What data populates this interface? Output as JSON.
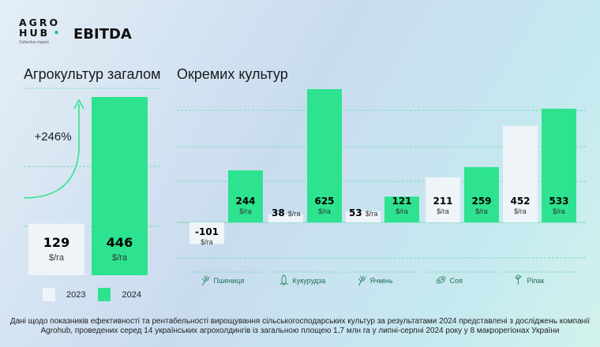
{
  "brand": {
    "logo_line1": "AGRO",
    "logo_line2": "HUB",
    "tagline": "Collective impact",
    "accent": "#2de38f"
  },
  "page": {
    "title": "EBITDA"
  },
  "legend": [
    {
      "label": "2023",
      "color": "#eef4f8"
    },
    {
      "label": "2024",
      "color": "#2de38f"
    }
  ],
  "footnote": "Дані щодо показників ефективності та рентабельності вирощування сільськогосподарських культур за результатами 2024 представлені з досліджень компанії Agrohub, проведених серед 14 українських агрохолдингів із загальною площею 1,7 млн га у липні-серпні 2024 року у 8 макрорегіонах України",
  "chart_data": [
    {
      "type": "bar",
      "title": "Агрокультур загалом",
      "categories": [
        "Агрокультур загалом"
      ],
      "series": [
        {
          "name": "2023",
          "values": [
            129
          ]
        },
        {
          "name": "2024",
          "values": [
            446
          ]
        }
      ],
      "unit": "$/га",
      "annotation": "+246%",
      "legend_position": "bottom-left",
      "grid": true
    },
    {
      "type": "bar",
      "title": "Окремих культур",
      "categories": [
        "Пшениця",
        "Кукурудза",
        "Ячмінь",
        "Соя",
        "Ріпак"
      ],
      "category_icons": [
        "wheat-icon",
        "corn-icon",
        "barley-icon",
        "soybean-icon",
        "rapeseed-icon"
      ],
      "series": [
        {
          "name": "2023",
          "values": [
            -101,
            38,
            53,
            211,
            452
          ]
        },
        {
          "name": "2024",
          "values": [
            244,
            625,
            121,
            259,
            533
          ]
        }
      ],
      "unit": "$/га",
      "grid": true
    }
  ]
}
